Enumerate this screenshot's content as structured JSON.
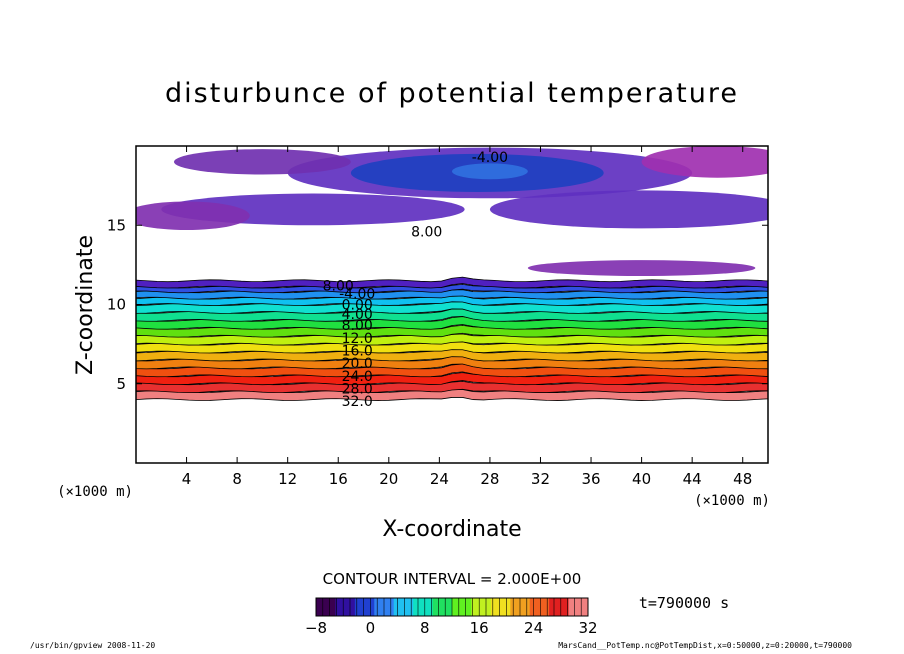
{
  "chart_data": {
    "type": "heatmap",
    "title": "disturbunce of potential temperature",
    "xlabel": "X-coordinate",
    "ylabel": "Z-coordinate",
    "x_unit_left": "(×1000 m)",
    "x_unit_right": "(×1000 m)",
    "xlim": [
      0,
      50
    ],
    "ylim": [
      0,
      20
    ],
    "xticks": [
      4,
      8,
      12,
      16,
      20,
      24,
      28,
      32,
      36,
      40,
      44,
      48
    ],
    "yticks": [
      5,
      10,
      15
    ],
    "contour_interval": "CONTOUR INTERVAL = 2.000E+00",
    "time_label": "t=790000 s",
    "colorbar": {
      "min": -8,
      "max": 32,
      "ticks": [
        "−8",
        "0",
        "8",
        "16",
        "24",
        "32"
      ],
      "colors": [
        "#3a0050",
        "#3010a0",
        "#2040d0",
        "#3080f0",
        "#20c0f0",
        "#10e0c0",
        "#20e060",
        "#60f020",
        "#c0f020",
        "#f0e020",
        "#f0a020",
        "#f06020",
        "#e02020",
        "#f08080"
      ]
    },
    "bands": [
      {
        "level": 32,
        "z_bottom": 4.0,
        "z_top": 4.5,
        "color": "#f08080"
      },
      {
        "level": 30,
        "z_bottom": 4.5,
        "z_top": 5.0,
        "color": "#e83030"
      },
      {
        "level": 28,
        "z_bottom": 5.0,
        "z_top": 5.5,
        "color": "#f02010"
      },
      {
        "level": 26,
        "z_bottom": 5.5,
        "z_top": 6.0,
        "color": "#f05010"
      },
      {
        "level": 24,
        "z_bottom": 6.0,
        "z_top": 6.5,
        "color": "#f08010"
      },
      {
        "level": 22,
        "z_bottom": 6.5,
        "z_top": 7.0,
        "color": "#f0b010"
      },
      {
        "level": 20,
        "z_bottom": 7.0,
        "z_top": 7.5,
        "color": "#f0e010"
      },
      {
        "level": 18,
        "z_bottom": 7.5,
        "z_top": 8.0,
        "color": "#c0f010"
      },
      {
        "level": 16,
        "z_bottom": 8.0,
        "z_top": 8.5,
        "color": "#60e010"
      },
      {
        "level": 14,
        "z_bottom": 8.5,
        "z_top": 9.0,
        "color": "#20e040"
      },
      {
        "level": 12,
        "z_bottom": 9.0,
        "z_top": 9.5,
        "color": "#10e090"
      },
      {
        "level": 10,
        "z_bottom": 9.5,
        "z_top": 10.0,
        "color": "#10e0d0"
      },
      {
        "level": 8,
        "z_bottom": 10.0,
        "z_top": 10.4,
        "color": "#10c0f0"
      },
      {
        "level": 4,
        "z_bottom": 10.4,
        "z_top": 10.8,
        "color": "#2090f0"
      },
      {
        "level": 0,
        "z_bottom": 10.8,
        "z_top": 11.1,
        "color": "#3050e0"
      },
      {
        "level": -4,
        "z_bottom": 11.1,
        "z_top": 11.5,
        "color": "#5020c0"
      }
    ],
    "contour_labels": [
      {
        "text": "32.0",
        "x": 17.5,
        "z": 3.9
      },
      {
        "text": "28.0",
        "x": 17.5,
        "z": 4.7
      },
      {
        "text": "24.0",
        "x": 17.5,
        "z": 5.5
      },
      {
        "text": "20.0",
        "x": 17.5,
        "z": 6.3
      },
      {
        "text": "16.0",
        "x": 17.5,
        "z": 7.1
      },
      {
        "text": "12.0",
        "x": 17.5,
        "z": 7.9
      },
      {
        "text": "8.00",
        "x": 17.5,
        "z": 8.7
      },
      {
        "text": "4.00",
        "x": 17.5,
        "z": 9.4
      },
      {
        "text": "0.00",
        "x": 17.5,
        "z": 10.0
      },
      {
        "text": "-4.00",
        "x": 17.5,
        "z": 10.7
      },
      {
        "text": "8.00",
        "x": 16.0,
        "z": 11.2
      },
      {
        "text": "8.00",
        "x": 23.0,
        "z": 14.6
      },
      {
        "text": "-4.00",
        "x": 28.0,
        "z": 19.3
      }
    ],
    "upper_blobs": [
      {
        "cx": 28,
        "cz": 18.3,
        "rx": 16,
        "rz": 1.6,
        "color": "#6030c0"
      },
      {
        "cx": 27,
        "cz": 18.3,
        "rx": 10,
        "rz": 1.2,
        "color": "#2040c0"
      },
      {
        "cx": 28,
        "cz": 18.4,
        "rx": 3,
        "rz": 0.5,
        "color": "#3070e0"
      },
      {
        "cx": 10,
        "cz": 19.0,
        "rx": 7,
        "rz": 0.8,
        "color": "#7030b0"
      },
      {
        "cx": 46,
        "cz": 19.0,
        "rx": 6,
        "rz": 1.0,
        "color": "#a030b0"
      },
      {
        "cx": 14,
        "cz": 16.0,
        "rx": 12,
        "rz": 1.0,
        "color": "#6030c0"
      },
      {
        "cx": 40,
        "cz": 16.0,
        "rx": 12,
        "rz": 1.2,
        "color": "#6030c0"
      },
      {
        "cx": 40,
        "cz": 12.3,
        "rx": 9,
        "rz": 0.5,
        "color": "#8030b0"
      },
      {
        "cx": 4,
        "cz": 15.6,
        "rx": 5,
        "rz": 0.9,
        "color": "#8030b0"
      }
    ]
  },
  "footer": {
    "left": "/usr/bin/gpview   2008-11-20",
    "right": "MarsCand__PotTemp.nc@PotTempDist,x=0:50000,z=0:20000,t=790000"
  }
}
